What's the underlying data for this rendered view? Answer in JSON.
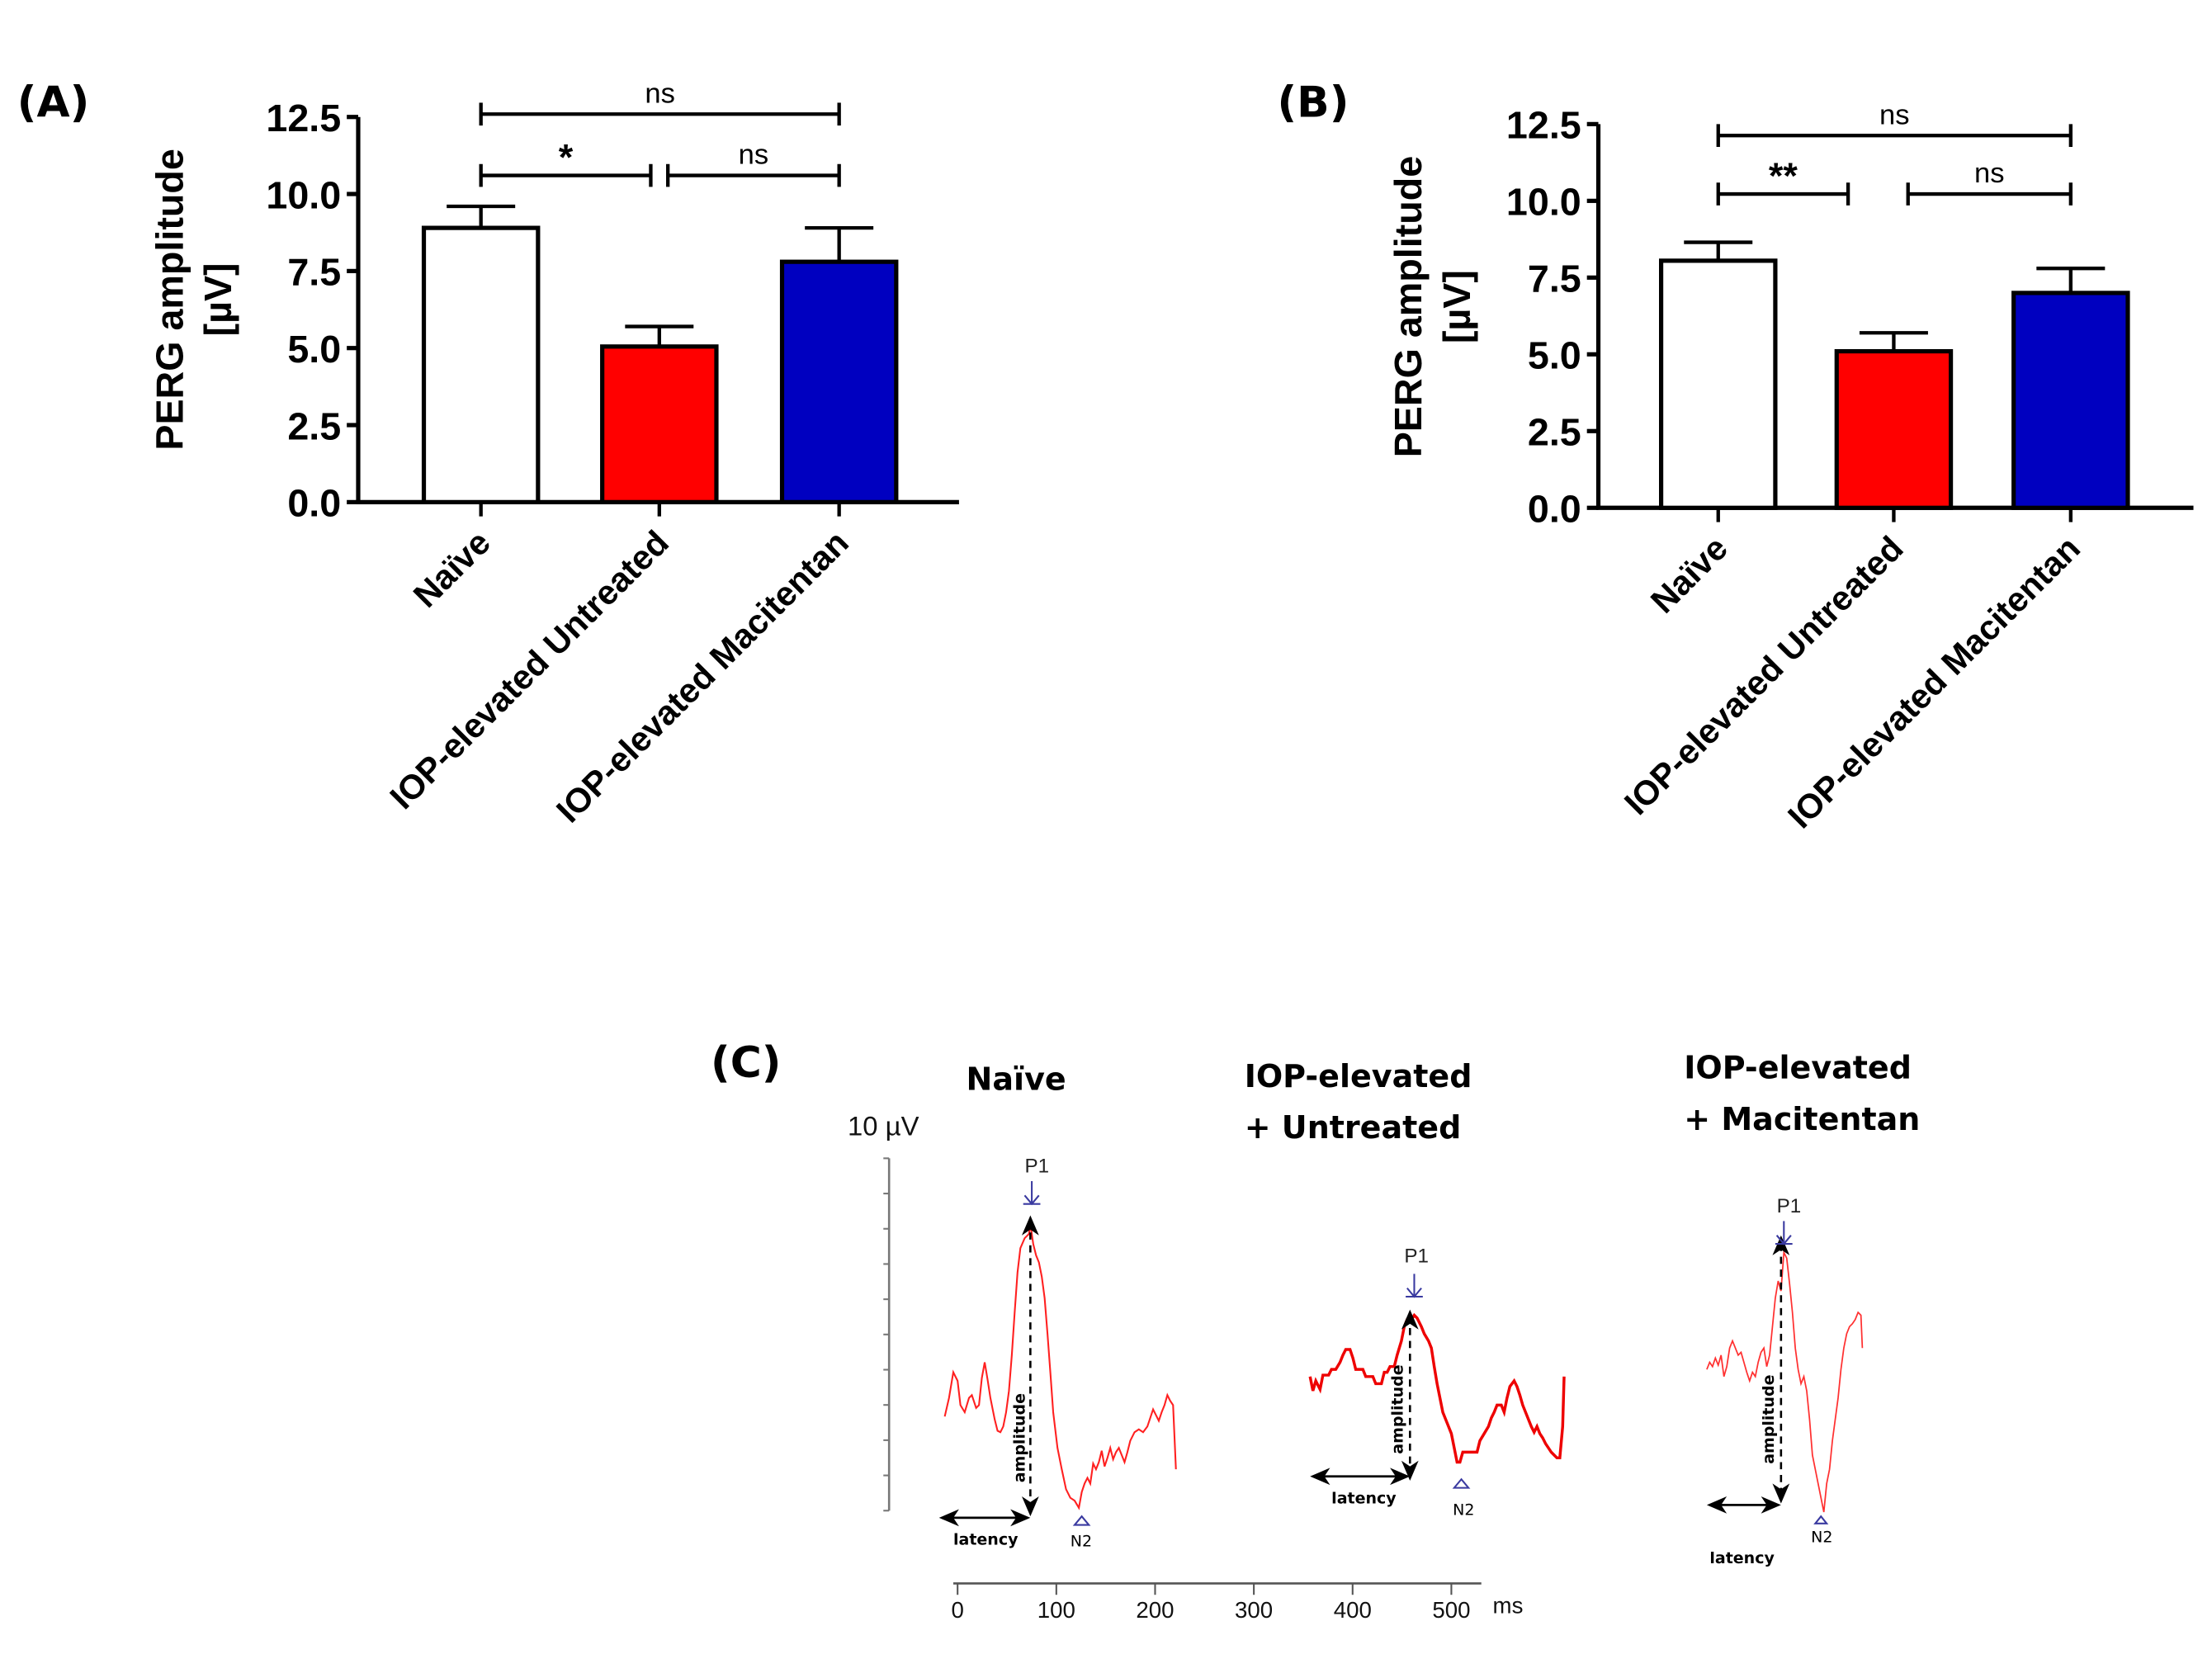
{
  "chart_data": [
    {
      "type": "bar",
      "panel": "(A)",
      "ylabel_line1": "PERG amplitude",
      "ylabel_line2": "[µV]",
      "ylim": [
        0,
        12.5
      ],
      "yticks": [
        "0.0",
        "2.5",
        "5.0",
        "7.5",
        "10.0",
        "12.5"
      ],
      "ytick_values": [
        0,
        2.5,
        5,
        7.5,
        10,
        12.5
      ],
      "categories": [
        "Naïve",
        "IOP-elevated Untreated",
        "IOP-elevated Macitentan"
      ],
      "values": [
        8.9,
        5.05,
        7.8
      ],
      "errors": [
        0.7,
        0.65,
        1.1
      ],
      "colors": [
        "#ffffff",
        "#ff0000",
        "#0000c0"
      ],
      "comparisons": [
        {
          "from": 0,
          "to": 2,
          "label": "ns",
          "level": 2
        },
        {
          "from": 0,
          "to": 1,
          "label": "*",
          "level": 1
        },
        {
          "from": 1,
          "to": 2,
          "label": "ns",
          "level": 1
        }
      ],
      "grid": false
    },
    {
      "type": "bar",
      "panel": "(B)",
      "ylabel_line1": "PERG amplitude",
      "ylabel_line2": "[µV]",
      "ylim": [
        0,
        12.5
      ],
      "yticks": [
        "0.0",
        "2.5",
        "5.0",
        "7.5",
        "10.0",
        "12.5"
      ],
      "ytick_values": [
        0,
        2.5,
        5,
        7.5,
        10,
        12.5
      ],
      "categories": [
        "Naïve",
        "IOP-elevated Untreated",
        "IOP-elevated Macitentan"
      ],
      "values": [
        8.05,
        5.1,
        7.0
      ],
      "errors": [
        0.6,
        0.6,
        0.8
      ],
      "colors": [
        "#ffffff",
        "#ff0000",
        "#0000c0"
      ],
      "comparisons": [
        {
          "from": 0,
          "to": 2,
          "label": "ns",
          "level": 2
        },
        {
          "from": 0,
          "to": 1,
          "label": "**",
          "level": 1
        },
        {
          "from": 1,
          "to": 2,
          "label": "ns",
          "level": 1
        }
      ],
      "grid": false
    },
    {
      "type": "line",
      "panel": "(C)",
      "scale_label": "10 µV",
      "time_unit": "ms",
      "time_ticks": [
        "0",
        "100",
        "200",
        "300",
        "400",
        "500"
      ],
      "traces": [
        {
          "title_line1": "Naïve",
          "title_line2": "",
          "peak_label": "P1",
          "trough_label": "N2",
          "amplitude_label": "amplitude",
          "latency_label": "latency"
        },
        {
          "title_line1": "IOP-elevated",
          "title_line2": "+ Untreated",
          "peak_label": "P1",
          "trough_label": "N2",
          "amplitude_label": "amplitude",
          "latency_label": "latency"
        },
        {
          "title_line1": "IOP-elevated",
          "title_line2": "+ Macitentan",
          "peak_label": "P1",
          "trough_label": "N2",
          "amplitude_label": "amplitude",
          "latency_label": "latency"
        }
      ],
      "trace_color": "#ff0000",
      "marker_color": "#3a3aa0"
    }
  ]
}
